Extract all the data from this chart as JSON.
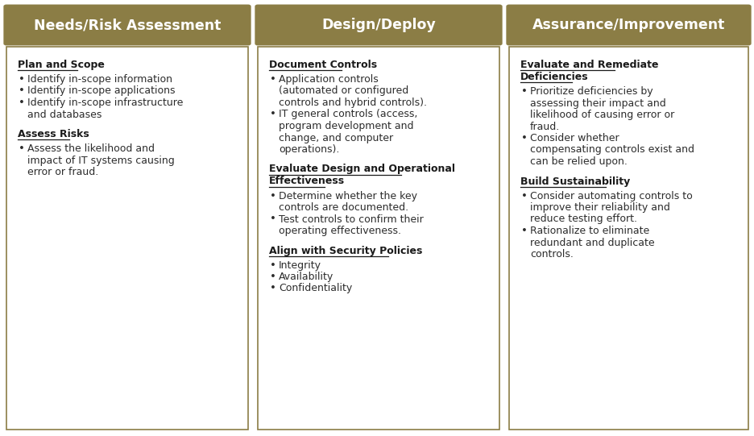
{
  "header_color": "#8B7D45",
  "header_text_color": "#FFFFFF",
  "background_color": "#FFFFFF",
  "border_color": "#8B7D45",
  "text_color": "#2C2C2C",
  "title_color": "#1a1a1a",
  "fig_width": 9.37,
  "fig_height": 5.41,
  "columns": [
    {
      "header": "Needs/Risk Assessment",
      "sections": [
        {
          "title": "Plan and Scope",
          "bullets": [
            [
              "Identify in-scope information"
            ],
            [
              "Identify in-scope applications"
            ],
            [
              "Identify in-scope infrastructure",
              "and databases"
            ]
          ]
        },
        {
          "title": "Assess Risks",
          "bullets": [
            [
              "Assess the likelihood and",
              "impact of IT systems causing",
              "error or fraud."
            ]
          ]
        }
      ]
    },
    {
      "header": "Design/Deploy",
      "sections": [
        {
          "title": "Document Controls",
          "bullets": [
            [
              "Application controls",
              "(automated or configured",
              "controls and hybrid controls)."
            ],
            [
              "IT general controls (access,",
              "program development and",
              "change, and computer",
              "operations)."
            ]
          ]
        },
        {
          "title_lines": [
            "Evaluate Design and Operational",
            "Effectiveness"
          ],
          "bullets": [
            [
              "Determine whether the key",
              "controls are documented."
            ],
            [
              "Test controls to confirm their",
              "operating effectiveness."
            ]
          ]
        },
        {
          "title": "Align with Security Policies",
          "bullets": [
            [
              "Integrity"
            ],
            [
              "Availability"
            ],
            [
              "Confidentiality"
            ]
          ]
        }
      ]
    },
    {
      "header": "Assurance/Improvement",
      "sections": [
        {
          "title_lines": [
            "Evaluate and Remediate",
            "Deficiencies"
          ],
          "bullets": [
            [
              "Prioritize deficiencies by",
              "assessing their impact and",
              "likelihood of causing error or",
              "fraud."
            ],
            [
              "Consider whether",
              "compensating controls exist and",
              "can be relied upon."
            ]
          ]
        },
        {
          "title": "Build Sustainability",
          "bullets": [
            [
              "Consider automating controls to",
              "improve their reliability and",
              "reduce testing effort."
            ],
            [
              "Rationalize to eliminate",
              "redundant and duplicate",
              "controls."
            ]
          ]
        }
      ]
    }
  ]
}
